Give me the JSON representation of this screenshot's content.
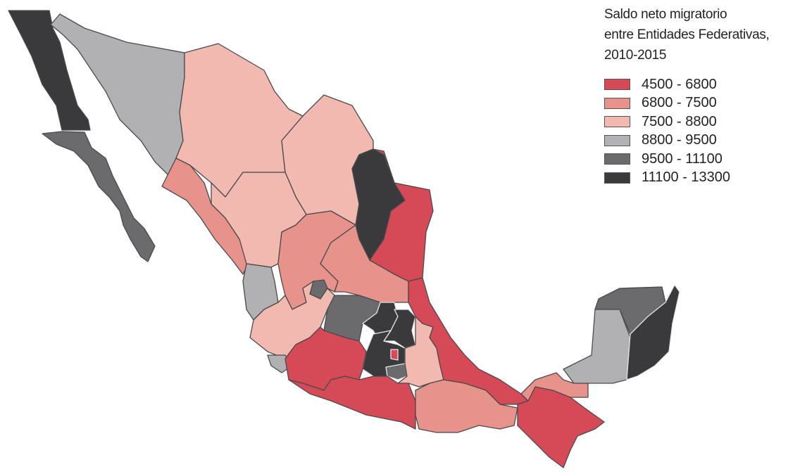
{
  "legend": {
    "title_lines": [
      "Saldo neto migratorio",
      "entre Entidades Federativas,",
      "2010-2015"
    ],
    "classes": [
      {
        "label": "4500 - 6800",
        "color": "#d64a58"
      },
      {
        "label": "6800 - 7500",
        "color": "#e8928c"
      },
      {
        "label": "7500 - 8800",
        "color": "#f2b9b1"
      },
      {
        "label": "8800 - 9500",
        "color": "#b1b1b3"
      },
      {
        "label": "9500 - 11100",
        "color": "#6b6b6e"
      },
      {
        "label": "11100 - 13300",
        "color": "#3a3a3d"
      }
    ]
  },
  "region_classes": {
    "baja-california": "11100 - 13300",
    "baja-california-sur": "9500 - 11100",
    "sonora": "8800 - 9500",
    "chihuahua": "7500 - 8800",
    "coahuila": "7500 - 8800",
    "nuevo-leon": "11100 - 13300",
    "tamaulipas": "4500 - 6800",
    "sinaloa": "6800 - 7500",
    "durango": "7500 - 8800",
    "zacatecas": "6800 - 7500",
    "san-luis-potosi": "6800 - 7500",
    "nayarit": "8800 - 9500",
    "aguascalientes": "9500 - 11100",
    "jalisco": "7500 - 8800",
    "colima": "8800 - 9500",
    "guanajuato": "9500 - 11100",
    "queretaro": "11100 - 13300",
    "hidalgo": "11100 - 13300",
    "estado-de-mexico": "11100 - 13300",
    "ciudad-de-mexico": "4500 - 6800",
    "morelos": "9500 - 11100",
    "tlaxcala": "8800 - 9500",
    "puebla": "7500 - 8800",
    "veracruz": "4500 - 6800",
    "michoacan": "4500 - 6800",
    "guerrero": "4500 - 6800",
    "oaxaca": "6800 - 7500",
    "chiapas": "4500 - 6800",
    "tabasco": "6800 - 7500",
    "campeche": "8800 - 9500",
    "yucatan": "9500 - 11100",
    "quintana-roo": "11100 - 13300"
  }
}
